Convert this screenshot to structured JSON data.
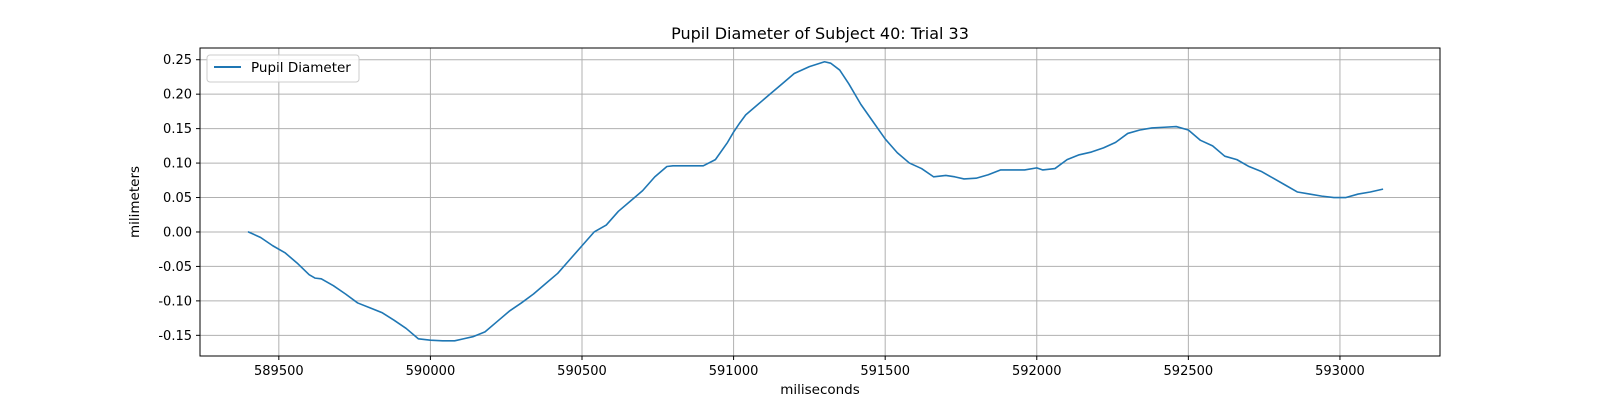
{
  "chart_data": {
    "type": "line",
    "title": "Pupil Diameter of Subject 40: Trial 33",
    "xlabel": "miliseconds",
    "ylabel": "milimeters",
    "xlim": [
      589240,
      593330
    ],
    "ylim": [
      -0.18,
      0.267
    ],
    "xticks": [
      589500,
      590000,
      590500,
      591000,
      591500,
      592000,
      592500,
      593000
    ],
    "yticks": [
      -0.15,
      -0.1,
      -0.05,
      0.0,
      0.05,
      0.1,
      0.15,
      0.2,
      0.25
    ],
    "grid": true,
    "legend_position": "upper-left",
    "series": [
      {
        "name": "Pupil Diameter",
        "color": "#1f77b4",
        "x": [
          589400,
          589440,
          589480,
          589520,
          589560,
          589600,
          589620,
          589640,
          589680,
          589720,
          589760,
          589800,
          589840,
          589880,
          589920,
          589960,
          590000,
          590040,
          590080,
          590110,
          590140,
          590180,
          590220,
          590260,
          590300,
          590340,
          590380,
          590420,
          590460,
          590500,
          590540,
          590580,
          590620,
          590660,
          590700,
          590740,
          590780,
          590800,
          590820,
          590840,
          590870,
          590900,
          590940,
          590980,
          591000,
          591020,
          591040,
          591080,
          591120,
          591160,
          591200,
          591250,
          591300,
          591320,
          591350,
          591380,
          591420,
          591460,
          591500,
          591540,
          591580,
          591620,
          591660,
          591700,
          591730,
          591760,
          591800,
          591840,
          591880,
          591920,
          591960,
          592000,
          592020,
          592060,
          592100,
          592140,
          592180,
          592220,
          592260,
          592300,
          592340,
          592380,
          592420,
          592460,
          592500,
          592540,
          592580,
          592620,
          592660,
          592700,
          592740,
          592780,
          592820,
          592860,
          592900,
          592940,
          592980,
          593020,
          593060,
          593100,
          593140
        ],
        "y": [
          0.0,
          -0.008,
          -0.02,
          -0.03,
          -0.045,
          -0.062,
          -0.067,
          -0.068,
          -0.078,
          -0.09,
          -0.103,
          -0.11,
          -0.117,
          -0.128,
          -0.14,
          -0.155,
          -0.157,
          -0.158,
          -0.158,
          -0.155,
          -0.152,
          -0.145,
          -0.13,
          -0.115,
          -0.103,
          -0.09,
          -0.075,
          -0.06,
          -0.04,
          -0.02,
          0.0,
          0.01,
          0.03,
          0.045,
          0.06,
          0.08,
          0.095,
          0.096,
          0.096,
          0.096,
          0.096,
          0.096,
          0.105,
          0.13,
          0.145,
          0.158,
          0.17,
          0.185,
          0.2,
          0.215,
          0.23,
          0.24,
          0.247,
          0.245,
          0.235,
          0.215,
          0.185,
          0.16,
          0.135,
          0.115,
          0.1,
          0.092,
          0.08,
          0.082,
          0.08,
          0.077,
          0.078,
          0.083,
          0.09,
          0.09,
          0.09,
          0.093,
          0.09,
          0.092,
          0.105,
          0.112,
          0.116,
          0.122,
          0.13,
          0.143,
          0.148,
          0.151,
          0.152,
          0.153,
          0.148,
          0.133,
          0.125,
          0.11,
          0.105,
          0.095,
          0.088,
          0.078,
          0.068,
          0.058,
          0.055,
          0.052,
          0.05,
          0.05,
          0.055,
          0.058,
          0.062
        ]
      }
    ]
  }
}
